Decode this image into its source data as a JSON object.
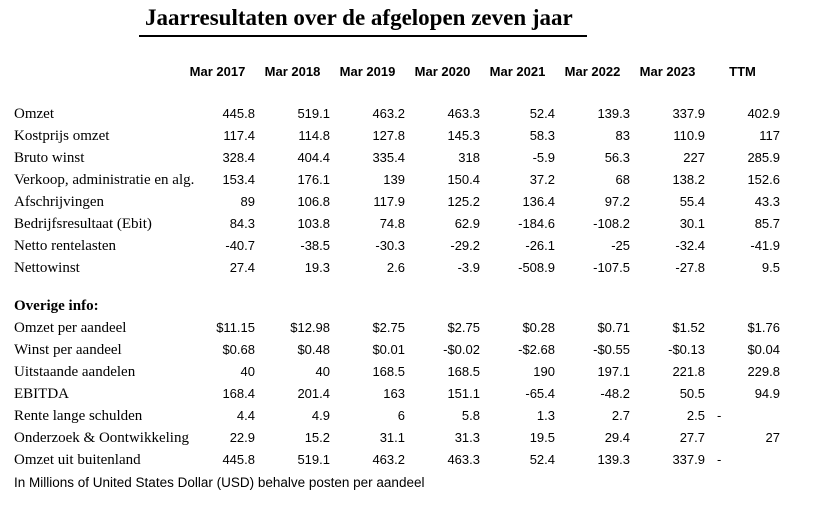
{
  "page": {
    "title": "Jaarresultaten over de afgelopen zeven jaar",
    "footnote": "In Millions of United States Dollar (USD) behalve posten per aandeel"
  },
  "table": {
    "columns": [
      "Mar 2017",
      "Mar 2018",
      "Mar 2019",
      "Mar 2020",
      "Mar 2021",
      "Mar 2022",
      "Mar 2023",
      "TTM"
    ],
    "sections": [
      {
        "heading": null,
        "rows": [
          {
            "label": "Omzet",
            "values": [
              "445.8",
              "519.1",
              "463.2",
              "463.3",
              "52.4",
              "139.3",
              "337.9",
              "402.9"
            ]
          },
          {
            "label": "Kostprijs omzet",
            "values": [
              "117.4",
              "114.8",
              "127.8",
              "145.3",
              "58.3",
              "83",
              "110.9",
              "117"
            ]
          },
          {
            "label": "Bruto winst",
            "values": [
              "328.4",
              "404.4",
              "335.4",
              "318",
              "-5.9",
              "56.3",
              "227",
              "285.9"
            ]
          },
          {
            "label": "Verkoop, administratie en alg.",
            "values": [
              "153.4",
              "176.1",
              "139",
              "150.4",
              "37.2",
              "68",
              "138.2",
              "152.6"
            ]
          },
          {
            "label": "Afschrijvingen",
            "values": [
              "89",
              "106.8",
              "117.9",
              "125.2",
              "136.4",
              "97.2",
              "55.4",
              "43.3"
            ]
          },
          {
            "label": "Bedrijfsresultaat (Ebit)",
            "values": [
              "84.3",
              "103.8",
              "74.8",
              "62.9",
              "-184.6",
              "-108.2",
              "30.1",
              "85.7"
            ]
          },
          {
            "label": "Netto rentelasten",
            "values": [
              "-40.7",
              "-38.5",
              "-30.3",
              "-29.2",
              "-26.1",
              "-25",
              "-32.4",
              "-41.9"
            ]
          },
          {
            "label": "Nettowinst",
            "values": [
              "27.4",
              "19.3",
              "2.6",
              "-3.9",
              "-508.9",
              "-107.5",
              "-27.8",
              "9.5"
            ]
          }
        ]
      },
      {
        "heading": "Overige info:",
        "rows": [
          {
            "label": "Omzet per aandeel",
            "values": [
              "$11.15",
              "$12.98",
              "$2.75",
              "$2.75",
              "$0.28",
              "$0.71",
              "$1.52",
              "$1.76"
            ]
          },
          {
            "label": "Winst per aandeel",
            "values": [
              "$0.68",
              "$0.48",
              "$0.01",
              "-$0.02",
              "-$2.68",
              "-$0.55",
              "-$0.13",
              "$0.04"
            ]
          },
          {
            "label": "Uitstaande aandelen",
            "values": [
              "40",
              "40",
              "168.5",
              "168.5",
              "190",
              "197.1",
              "221.8",
              "229.8"
            ]
          },
          {
            "label": "EBITDA",
            "values": [
              "168.4",
              "201.4",
              "163",
              "151.1",
              "-65.4",
              "-48.2",
              "50.5",
              "94.9"
            ]
          },
          {
            "label": "Rente lange schulden",
            "values": [
              "4.4",
              "4.9",
              "6",
              "5.8",
              "1.3",
              "2.7",
              "2.5",
              "-"
            ]
          },
          {
            "label": "Onderzoek & Oontwikkeling",
            "values": [
              "22.9",
              "15.2",
              "31.1",
              "31.3",
              "19.5",
              "29.4",
              "27.7",
              "27"
            ]
          },
          {
            "label": "Omzet uit buitenland",
            "values": [
              "445.8",
              "519.1",
              "463.2",
              "463.3",
              "52.4",
              "139.3",
              "337.9",
              "-"
            ]
          }
        ]
      }
    ]
  }
}
